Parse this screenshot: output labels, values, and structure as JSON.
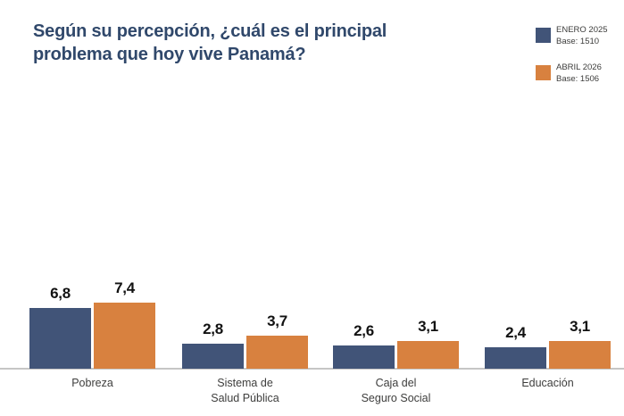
{
  "title": "Según su percepción, ¿cuál es el principal problema que hoy vive Panamá?",
  "legend": {
    "items": [
      {
        "label": "ENERO 2025",
        "base": "Base: 1510",
        "color": "#415478"
      },
      {
        "label": "ABRIL 2026",
        "base": "Base: 1506",
        "color": "#D8813F"
      }
    ]
  },
  "chart_data": {
    "type": "bar",
    "title": "Según su percepción, ¿cuál es el principal problema que hoy vive Panamá?",
    "categories": [
      "Pobreza",
      "Sistema de\nSalud Pública",
      "Caja del\nSeguro Social",
      "Educación"
    ],
    "series": [
      {
        "name": "ENERO 2025",
        "base": 1510,
        "color": "#415478",
        "values": [
          6.8,
          2.8,
          2.6,
          2.4
        ]
      },
      {
        "name": "ABRIL 2026",
        "base": 1506,
        "color": "#D8813F",
        "values": [
          7.4,
          3.7,
          3.1,
          3.1
        ]
      }
    ],
    "value_label_decimal_separator": ",",
    "xlabel": "",
    "ylabel": "",
    "ylim": [
      0,
      8
    ],
    "grid": false,
    "legend_position": "top-right"
  },
  "colors": {
    "title": "#30486B",
    "bar_blue": "#415478",
    "bar_orange": "#D8813F",
    "value_label": "#121212",
    "category_label": "#3E3E3D",
    "axis_line": "#C6C6C5",
    "background": "#FFFFFF"
  }
}
